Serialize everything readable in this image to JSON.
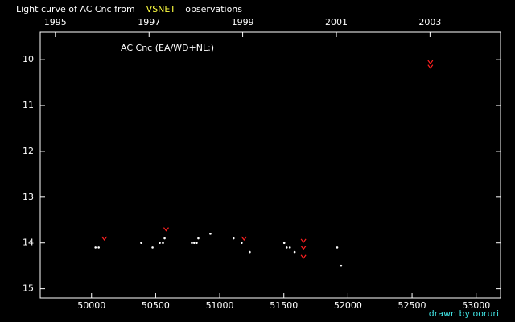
{
  "chart_data": {
    "type": "scatter",
    "title": [
      {
        "text": "Light curve of AC Cnc from",
        "color": "#ffffff"
      },
      {
        "text": "VSNET",
        "color": "#ffff40"
      },
      {
        "text": "observations",
        "color": "#ffffff"
      }
    ],
    "annotation": "AC Cnc (EA/WD+NL:)",
    "credit": "drawn by ooruri",
    "credit_color": "#40e0e0",
    "xlim": [
      49600,
      53190
    ],
    "xticks": [
      50000,
      50500,
      51000,
      51500,
      52000,
      52500,
      53000
    ],
    "x2ticks": [
      {
        "value": 49718,
        "label": "1995"
      },
      {
        "value": 50449,
        "label": "1997"
      },
      {
        "value": 51179,
        "label": "1999"
      },
      {
        "value": 51910,
        "label": "2001"
      },
      {
        "value": 52640,
        "label": "2003"
      }
    ],
    "ylim": [
      15.2,
      9.4
    ],
    "yticks": [
      10,
      11,
      12,
      13,
      14,
      15
    ],
    "series": [
      {
        "marker": "dot",
        "color": "#ffffff",
        "x": [
          50031,
          50056,
          50388,
          50476,
          50532,
          50557,
          50570,
          50783,
          50801,
          50820,
          50833,
          50927,
          51108,
          51171,
          51234,
          51503,
          51522,
          51547,
          51584,
          51916,
          51947
        ],
        "values": [
          14.1,
          14.1,
          14.0,
          14.1,
          14.0,
          14.0,
          13.9,
          14.0,
          14.0,
          14.0,
          13.9,
          13.8,
          13.9,
          14.0,
          14.2,
          14.0,
          14.1,
          14.1,
          14.2,
          14.1,
          14.5
        ]
      },
      {
        "marker": "v",
        "color": "#ff2020",
        "x": [
          50100,
          50582,
          51190,
          51653,
          51653,
          51653,
          52643,
          52643
        ],
        "values": [
          13.9,
          13.7,
          13.9,
          13.95,
          14.1,
          14.3,
          10.05,
          10.15
        ]
      }
    ]
  }
}
